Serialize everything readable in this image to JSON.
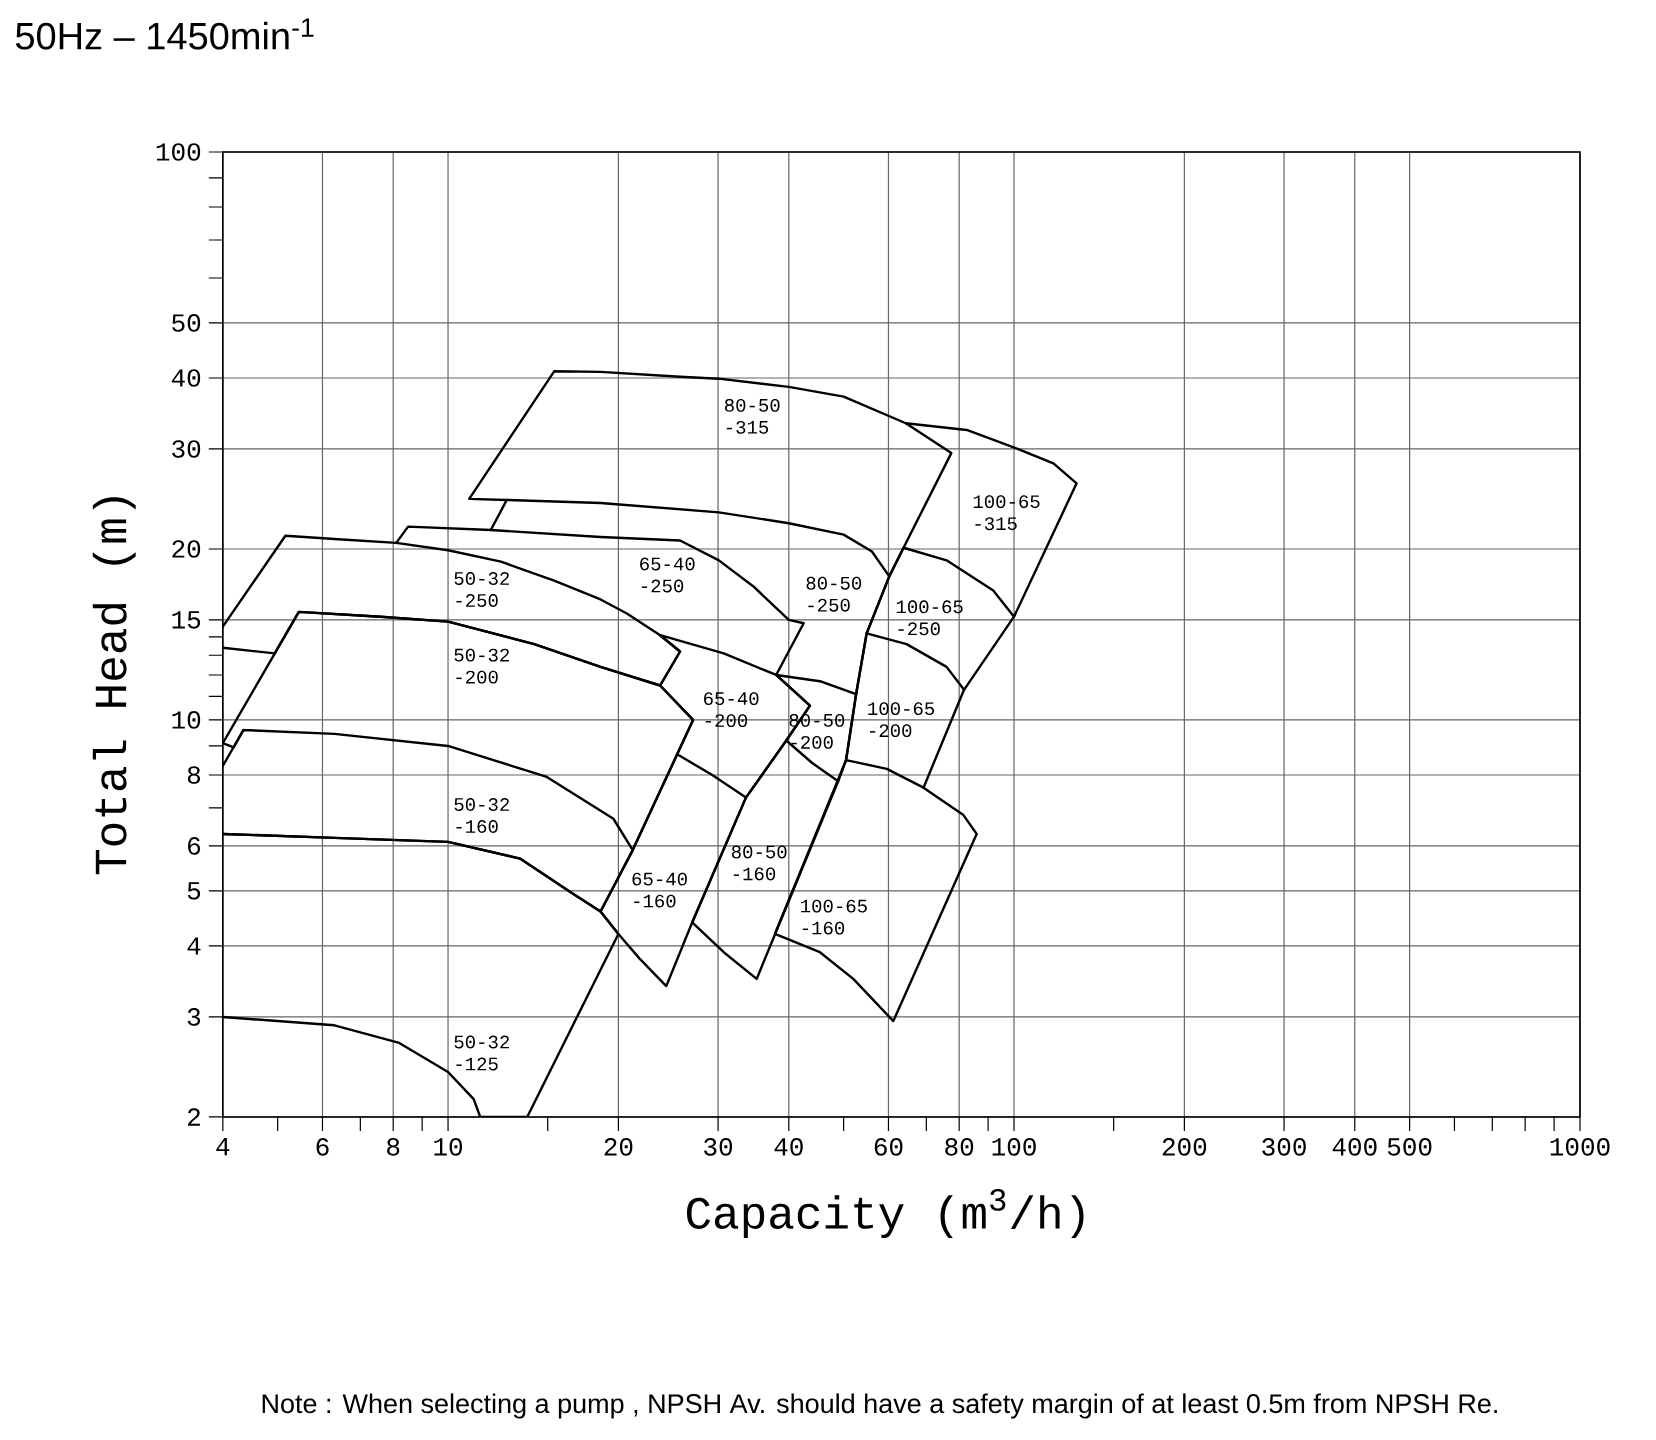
{
  "chart_data": {
    "type": "line",
    "title": "50Hz – 1450min$^{-1}$",
    "xlabel": "Capacity (m$^{3}$/h)",
    "ylabel": "Total Head (m)",
    "log": "xy",
    "xlim": [
      4,
      1000
    ],
    "ylim": [
      2,
      100
    ],
    "xticks": [
      4,
      {
        "value": 5,
        "label": null
      },
      6,
      {
        "value": 7,
        "label": null
      },
      8,
      {
        "value": 9,
        "label": null
      },
      10,
      {
        "value": 15,
        "label": null
      },
      20,
      30,
      40,
      {
        "value": 50,
        "label": null
      },
      60,
      {
        "value": 70,
        "label": null
      },
      80,
      {
        "value": 90,
        "label": null
      },
      100,
      {
        "value": 150,
        "label": null
      },
      200,
      300,
      400,
      500,
      {
        "value": 600,
        "label": null
      },
      {
        "value": 700,
        "label": null
      },
      {
        "value": 800,
        "label": null
      },
      {
        "value": 900,
        "label": null
      },
      1000
    ],
    "yticks": [
      2,
      3,
      4,
      5,
      6,
      {
        "value": 7,
        "label": null
      },
      8,
      {
        "value": 9,
        "label": null
      },
      10,
      {
        "value": 11,
        "label": null
      },
      {
        "value": 12,
        "label": null
      },
      {
        "value": 13,
        "label": null
      },
      {
        "value": 14,
        "label": null
      },
      15,
      20,
      30,
      40,
      50,
      {
        "value": 60,
        "label": null
      },
      {
        "value": 70,
        "label": null
      },
      {
        "value": 80,
        "label": null
      },
      {
        "value": 90,
        "label": null
      },
      100
    ],
    "grid": true,
    "series": [
      {
        "name": "50-32 -125",
        "color": "#000000",
        "x": [
          4,
          6.3,
          10,
          13.4,
          16.6,
          18.6,
          20,
          13.8,
          11.4,
          11.1,
          10,
          8.2,
          6.3,
          4
        ],
        "values": [
          6.3,
          6.2,
          6.1,
          5.7,
          4.95,
          4.6,
          4.2,
          2,
          2,
          2.15,
          2.4,
          2.7,
          2.9,
          3
        ]
      },
      {
        "name": "50-32 -160",
        "color": "#000000",
        "x": [
          4,
          4.35,
          6.3,
          10,
          14.9,
          19.6,
          21.2,
          18.6,
          16.6,
          13.4,
          10,
          6.3,
          4
        ],
        "values": [
          8.3,
          9.6,
          9.45,
          9.0,
          7.95,
          6.7,
          5.9,
          4.6,
          4.95,
          5.7,
          6.1,
          6.2,
          6.3
        ]
      },
      {
        "name": "50-32 -200",
        "color": "#000000",
        "x": [
          4.35,
          4.18,
          4,
          5.45,
          7.6,
          10,
          14.2,
          18.6,
          23.7,
          27.1,
          25.4,
          21.2
        ],
        "values": [
          9.6,
          8.95,
          9.1,
          15.5,
          15.2,
          14.9,
          13.6,
          12.4,
          11.5,
          10,
          8.7,
          5.9
        ]
      },
      {
        "name": "50-32 -250",
        "color": "#000000",
        "x": [
          4,
          5.16,
          6.4,
          8.1,
          10,
          12.4,
          15.4,
          18.6,
          20.7,
          23.7,
          25.7,
          23.7,
          18.6,
          14.2,
          10,
          7.6,
          5.45,
          4.94,
          4
        ],
        "values": [
          14.6,
          21.1,
          20.8,
          20.5,
          19.9,
          19.0,
          17.6,
          16.3,
          15.4,
          14.1,
          13.2,
          11.5,
          12.4,
          13.6,
          14.9,
          15.2,
          15.5,
          13.1,
          13.4
        ]
      },
      {
        "name": "65-40 -160",
        "color": "#000000",
        "x": [
          33.6,
          27.0,
          24.3,
          21.8,
          20,
          18.6,
          21.2,
          25.4
        ],
        "values": [
          7.3,
          4.4,
          3.4,
          3.8,
          4.2,
          4.6,
          5.9,
          8.7
        ]
      },
      {
        "name": "65-40 -200",
        "color": "#000000",
        "x": [
          38.0,
          43.6,
          39.6,
          33.6,
          29.3,
          25.4,
          27.1,
          23.7,
          25.7,
          23.7
        ],
        "values": [
          12.0,
          10.6,
          9.2,
          7.3,
          8.0,
          8.7,
          10,
          11.5,
          13.2,
          14.1
        ]
      },
      {
        "name": "65-40 -250",
        "color": "#000000",
        "x": [
          8.1,
          8.5,
          11.9,
          18.6,
          25.7,
          30.1,
          34.6,
          40,
          42.5,
          38.0,
          30.7,
          23.7
        ],
        "values": [
          20.5,
          21.9,
          21.6,
          21.0,
          20.7,
          19.1,
          17.2,
          15.0,
          14.8,
          12.0,
          13.1,
          14.1
        ]
      },
      {
        "name": "80-50 -315",
        "color": "#000000",
        "x": [
          12.7,
          10.9,
          15.4,
          18.6,
          25.7,
          30.1,
          40,
          50,
          64.4,
          77.5,
          63.8,
          60.2
        ],
        "values": [
          24.4,
          24.5,
          41.1,
          41.0,
          40.2,
          39.9,
          38.6,
          37.1,
          33.3,
          29.5,
          20.1,
          17.9
        ]
      },
      {
        "name": "100-65 -315",
        "color": "#000000",
        "x": [
          64.4,
          82.5,
          102.5,
          117.4,
          129,
          100,
          91.9,
          76.0,
          63.8
        ],
        "values": [
          33.3,
          32.4,
          29.9,
          28.3,
          26.1,
          15.2,
          16.9,
          19.1,
          20.1
        ]
      },
      {
        "name": "80-50 -250",
        "color": "#000000",
        "x": [
          11.9,
          12.7,
          18.6,
          30.1,
          40,
          50,
          56.1,
          60.2,
          54.9,
          52.6,
          45.4,
          38.0
        ],
        "values": [
          21.6,
          24.4,
          24.1,
          23.2,
          22.2,
          21.2,
          19.8,
          17.9,
          14.2,
          11.1,
          11.7,
          12.0
        ]
      },
      {
        "name": "80-50 -200",
        "color": "#000000",
        "x": [
          52.6,
          50.5,
          48.9,
          44.0,
          39.6,
          43.6,
          38.0
        ],
        "values": [
          11.1,
          8.5,
          7.8,
          8.4,
          9.2,
          10.6,
          12.0
        ]
      },
      {
        "name": "80-50 -160",
        "color": "#000000",
        "x": [
          48.9,
          35.1,
          30.7,
          27.0,
          33.6,
          39.6
        ],
        "values": [
          7.8,
          3.5,
          3.9,
          4.4,
          7.3,
          9.2
        ]
      },
      {
        "name": "100-65 -250",
        "color": "#000000",
        "x": [
          100,
          81.6,
          76.0,
          64.6,
          54.9,
          60.2,
          63.8
        ],
        "values": [
          15.2,
          11.3,
          12.4,
          13.6,
          14.2,
          17.9,
          20.1
        ]
      },
      {
        "name": "100-65 -200",
        "color": "#000000",
        "x": [
          81.6,
          69.2,
          59.6,
          50.5,
          52.6,
          54.9
        ],
        "values": [
          11.3,
          7.6,
          8.2,
          8.5,
          11.1,
          14.2
        ]
      },
      {
        "name": "100-65 -160",
        "color": "#000000",
        "x": [
          69.2,
          81.4,
          85.9,
          61.2,
          52.0,
          45.4,
          37.8,
          50.5
        ],
        "values": [
          7.6,
          6.8,
          6.3,
          2.95,
          3.5,
          3.9,
          4.2,
          8.5
        ]
      }
    ],
    "annotations": [
      "Note : When selecting a pump , NPSH Av. should have a safety margin of at least 0.5m from NPSH Re."
    ]
  }
}
